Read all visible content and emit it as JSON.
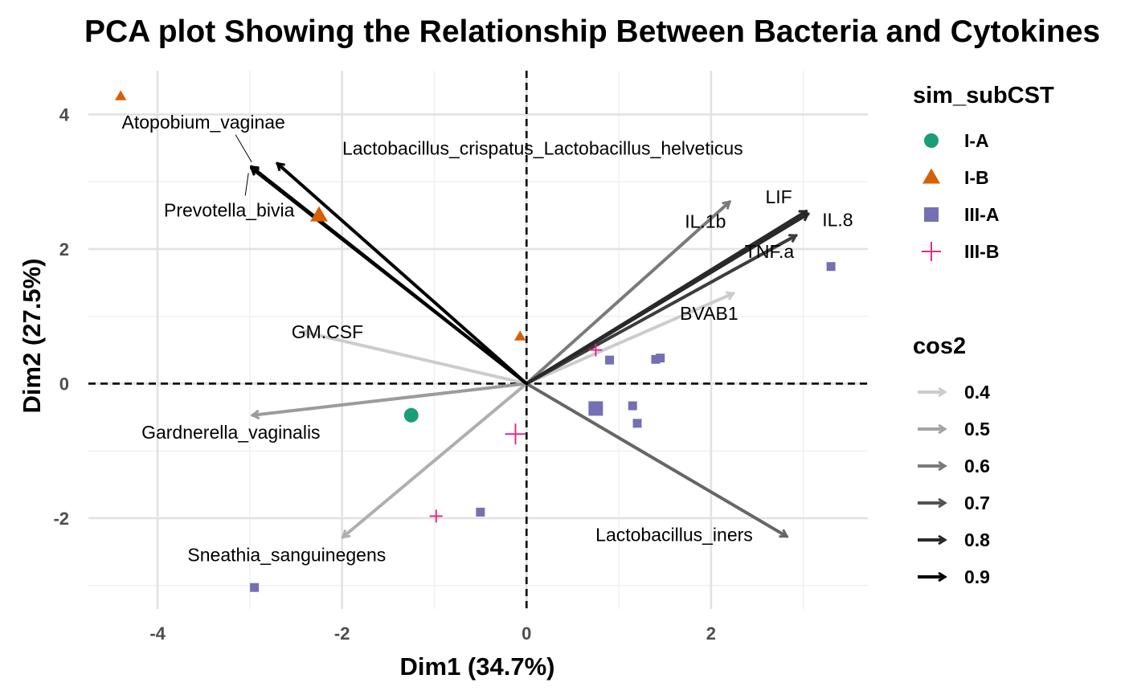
{
  "chart_data": {
    "type": "scatter",
    "title": "PCA plot Showing the Relationship Between Bacteria and Cytokines",
    "xlabel": "Dim1 (34.7%)",
    "ylabel": "Dim2 (27.5%)",
    "xlim": [
      -4.75,
      3.7
    ],
    "ylim": [
      -3.35,
      4.65
    ],
    "xticks": [
      -4,
      -2,
      0,
      2
    ],
    "yticks": [
      -2,
      0,
      2,
      4
    ],
    "grid": true,
    "individuals": [
      {
        "group": "I-B",
        "x": -4.4,
        "y": 4.27,
        "size": "small"
      },
      {
        "group": "I-B",
        "x": -2.25,
        "y": 2.5,
        "size": "mean"
      },
      {
        "group": "I-B",
        "x": -0.07,
        "y": 0.7,
        "size": "small"
      },
      {
        "group": "I-A",
        "x": -1.25,
        "y": -0.47,
        "size": "mean"
      },
      {
        "group": "III-A",
        "x": 0.75,
        "y": -0.37,
        "size": "mean"
      },
      {
        "group": "III-A",
        "x": 0.9,
        "y": 0.35,
        "size": "small"
      },
      {
        "group": "III-A",
        "x": 1.4,
        "y": 0.36,
        "size": "small"
      },
      {
        "group": "III-A",
        "x": 1.45,
        "y": 0.38,
        "size": "small"
      },
      {
        "group": "III-A",
        "x": 1.15,
        "y": -0.33,
        "size": "small"
      },
      {
        "group": "III-A",
        "x": 1.2,
        "y": -0.59,
        "size": "small"
      },
      {
        "group": "III-A",
        "x": 3.3,
        "y": 1.74,
        "size": "small"
      },
      {
        "group": "III-A",
        "x": -0.5,
        "y": -1.91,
        "size": "small"
      },
      {
        "group": "III-A",
        "x": -2.95,
        "y": -3.03,
        "size": "small"
      },
      {
        "group": "III-B",
        "x": 0.75,
        "y": 0.5,
        "size": "small"
      },
      {
        "group": "III-B",
        "x": -0.12,
        "y": -0.75,
        "size": "mean"
      },
      {
        "group": "III-B",
        "x": -0.98,
        "y": -1.97,
        "size": "small"
      }
    ],
    "variables": [
      {
        "name": "Atopobium_vaginae",
        "x": -2.98,
        "y": 3.22,
        "cos2": 0.9
      },
      {
        "name": "Prevotella_bivia",
        "x": -2.98,
        "y": 3.2,
        "cos2": 0.9
      },
      {
        "name": "Lactobacillus_crispatus_Lactobacillus_helveticus",
        "x": -2.7,
        "y": 3.27,
        "cos2": 0.9
      },
      {
        "name": "IL.1b",
        "x": 2.2,
        "y": 2.7,
        "cos2": 0.6
      },
      {
        "name": "LIF",
        "x": 3.03,
        "y": 2.56,
        "cos2": 0.8
      },
      {
        "name": "IL.8",
        "x": 3.05,
        "y": 2.52,
        "cos2": 0.8
      },
      {
        "name": "TNF.a",
        "x": 2.92,
        "y": 2.2,
        "cos2": 0.75
      },
      {
        "name": "BVAB1",
        "x": 2.24,
        "y": 1.34,
        "cos2": 0.4
      },
      {
        "name": "GM.CSF",
        "x": -2.42,
        "y": 0.77,
        "cos2": 0.4
      },
      {
        "name": "Gardnerella_vaginalis",
        "x": -2.97,
        "y": -0.47,
        "cos2": 0.52
      },
      {
        "name": "Sneathia_sanguinegens",
        "x": -1.99,
        "y": -2.28,
        "cos2": 0.47
      },
      {
        "name": "Lactobacillus_iners",
        "x": 2.82,
        "y": -2.27,
        "cos2": 0.65
      }
    ],
    "legend_group": {
      "title": "sim_subCST",
      "entries": [
        {
          "label": "I-A",
          "color": "#1b9e77",
          "shape": "circle"
        },
        {
          "label": "I-B",
          "color": "#d95f02",
          "shape": "triangle"
        },
        {
          "label": "III-A",
          "color": "#7570b3",
          "shape": "square"
        },
        {
          "label": "III-B",
          "color": "#e7298a",
          "shape": "plus"
        }
      ]
    },
    "legend_cos2": {
      "title": "cos2",
      "entries": [
        "0.4",
        "0.5",
        "0.6",
        "0.7",
        "0.8",
        "0.9"
      ]
    },
    "legend_position": "right"
  }
}
